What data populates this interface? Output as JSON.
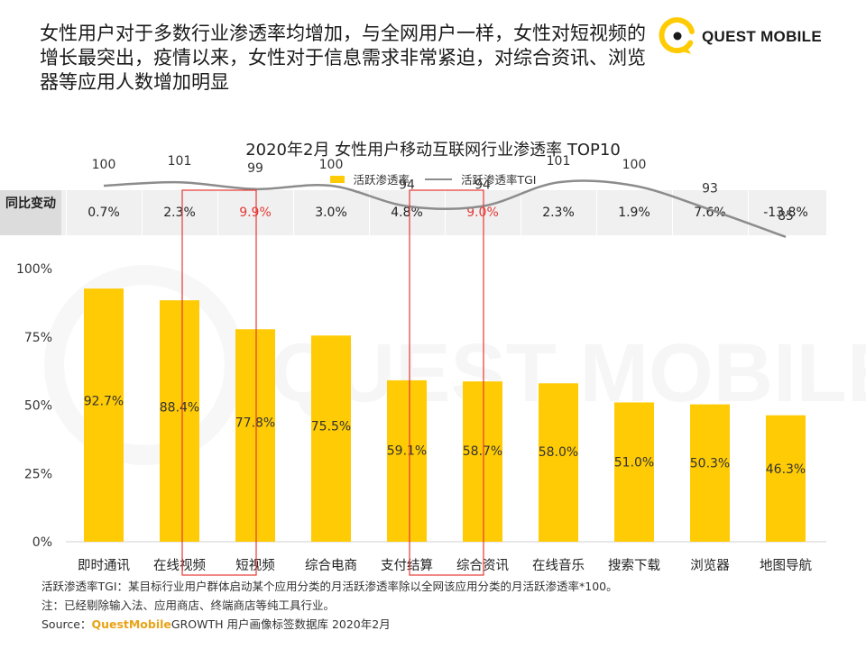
{
  "headline": "女性用户对于多数行业渗透率均增加，与全网用户一样，女性对短视频的增长最突出，疫情以来，女性对于信息需求非常紧迫，对综合资讯、浏览器等应用人数增加明显",
  "brand": {
    "name": "QUEST MOBILE",
    "watermark": "QUEST MOBILE",
    "accent_color": "#FFCB05"
  },
  "change_row": {
    "header": "同比变动",
    "highlight_color": "#E53935",
    "values": [
      "0.7%",
      "2.3%",
      "9.9%",
      "3.0%",
      "4.8%",
      "9.0%",
      "2.3%",
      "1.9%",
      "7.6%",
      "-13.8%"
    ],
    "highlighted": [
      "短视频",
      "综合资讯"
    ]
  },
  "chart_data": {
    "type": "bar",
    "title": "2020年2月 女性用户移动互联网行业渗透率 TOP10",
    "categories": [
      "即时通讯",
      "在线视频",
      "短视频",
      "综合电商",
      "支付结算",
      "综合资讯",
      "在线音乐",
      "搜索下载",
      "浏览器",
      "地图导航"
    ],
    "series": [
      {
        "name": "活跃渗透率",
        "kind": "bar",
        "color": "#FFCB05",
        "values": [
          92.7,
          88.4,
          77.8,
          75.5,
          59.1,
          58.7,
          58.0,
          51.0,
          50.3,
          46.3
        ],
        "labels": [
          "92.7%",
          "88.4%",
          "77.8%",
          "75.5%",
          "59.1%",
          "58.7%",
          "58.0%",
          "51.0%",
          "50.3%",
          "46.3%"
        ]
      },
      {
        "name": "活跃渗透率TGI",
        "kind": "line",
        "color": "#8c8c8c",
        "values": [
          100,
          101,
          99,
          100,
          94,
          94,
          101,
          100,
          93,
          85
        ]
      }
    ],
    "y_ticks": [
      "0%",
      "25%",
      "50%",
      "75%",
      "100%"
    ],
    "ylim": [
      0,
      100
    ],
    "grid": false,
    "legend": "top-center"
  },
  "notes": {
    "tgi_def": "活跃渗透率TGI：某目标行业用户群体启动某个应用分类的月活跃渗透率除以全网该应用分类的月活跃渗透率*100。",
    "note": "注：已经剔除输入法、应用商店、终端商店等纯工具行业。",
    "source_label": "Source：",
    "source_brand": "QuestMobile",
    "source_rest": "GROWTH 用户画像标签数据库 2020年2月"
  }
}
